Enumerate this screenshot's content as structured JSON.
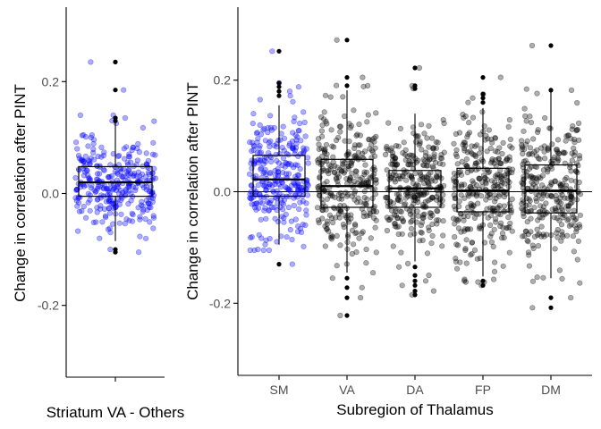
{
  "chart_data": [
    {
      "type": "scatter",
      "subtype": "jittered box plot with points",
      "title": "",
      "xlabel": "Striatum VA - Others",
      "ylabel": "Change in correlation after PINT",
      "ylim": [
        -0.33,
        0.33
      ],
      "yticks": [
        -0.2,
        0.0,
        0.2
      ],
      "ytick_labels": [
        "-0.2",
        "0.0",
        "0.2"
      ],
      "grid": false,
      "legend": "none",
      "zero_line": false,
      "categories": [
        ""
      ],
      "series": [
        {
          "category": "",
          "color": "#0000ff",
          "box": {
            "q1": -0.005,
            "median": 0.02,
            "q3": 0.048,
            "whisker_low": -0.085,
            "whisker_high": 0.13
          },
          "n_points": 320,
          "outliers": [
            0.235,
            0.185,
            0.135,
            0.13,
            -0.1,
            -0.105
          ]
        }
      ]
    },
    {
      "type": "scatter",
      "subtype": "jittered box plot with points",
      "title": "",
      "xlabel": "Subregion of Thalamus",
      "ylabel": "Change in correlation after PINT",
      "ylim": [
        -0.33,
        0.33
      ],
      "yticks": [
        -0.2,
        0.0,
        0.2
      ],
      "ytick_labels": [
        "-0.2",
        "0.0",
        "0.2"
      ],
      "grid": false,
      "legend": "none",
      "zero_line": true,
      "categories": [
        "SM",
        "VA",
        "DA",
        "FP",
        "DM"
      ],
      "series": [
        {
          "category": "SM",
          "color": "#0000ff",
          "box": {
            "q1": -0.008,
            "median": 0.022,
            "q3": 0.065,
            "whisker_low": -0.095,
            "whisker_high": 0.155
          },
          "n_points": 300,
          "outliers": [
            0.252,
            0.195,
            0.188,
            0.18,
            0.172,
            -0.13
          ]
        },
        {
          "category": "VA",
          "color": "#000000",
          "box": {
            "q1": -0.028,
            "median": 0.01,
            "q3": 0.058,
            "whisker_low": -0.145,
            "whisker_high": 0.182
          },
          "n_points": 300,
          "outliers": [
            0.272,
            0.205,
            0.19,
            -0.155,
            -0.172,
            -0.19,
            -0.222
          ]
        },
        {
          "category": "DA",
          "color": "#000000",
          "box": {
            "q1": -0.028,
            "median": 0.006,
            "q3": 0.038,
            "whisker_low": -0.125,
            "whisker_high": 0.14
          },
          "n_points": 300,
          "outliers": [
            0.222,
            0.19,
            0.185,
            -0.135,
            -0.15,
            -0.16,
            -0.168,
            -0.178,
            -0.185
          ]
        },
        {
          "category": "FP",
          "color": "#000000",
          "box": {
            "q1": -0.036,
            "median": 0.002,
            "q3": 0.042,
            "whisker_low": -0.152,
            "whisker_high": 0.15
          },
          "n_points": 300,
          "outliers": [
            0.205,
            0.175,
            0.168,
            0.16,
            -0.16,
            -0.168
          ]
        },
        {
          "category": "DM",
          "color": "#000000",
          "box": {
            "q1": -0.038,
            "median": 0.002,
            "q3": 0.048,
            "whisker_low": -0.155,
            "whisker_high": 0.178
          },
          "n_points": 300,
          "outliers": [
            0.262,
            0.182,
            -0.19,
            -0.208
          ]
        }
      ]
    }
  ]
}
